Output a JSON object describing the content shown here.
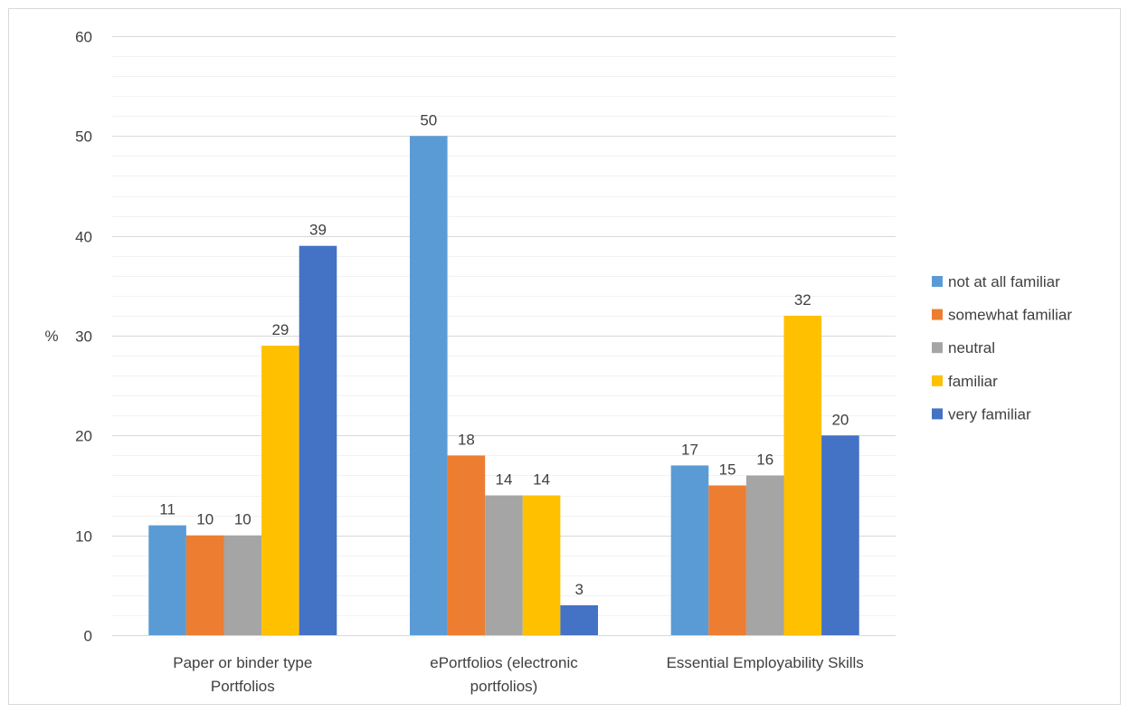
{
  "chart_data": {
    "type": "bar",
    "ylabel": "%",
    "ylim": [
      0,
      60
    ],
    "yticks": [
      0,
      10,
      20,
      30,
      40,
      50,
      60
    ],
    "major_gridlines": true,
    "minor_gridlines": true,
    "legend_position": "right",
    "categories": [
      [
        "Paper or binder type",
        "Portfolios"
      ],
      [
        "ePortfolios (electronic",
        "portfolios)"
      ],
      [
        "Essential Employability Skills"
      ]
    ],
    "series": [
      {
        "name": "not at all familiar",
        "color": "#5B9BD5",
        "values": [
          11,
          50,
          17
        ]
      },
      {
        "name": "somewhat familiar",
        "color": "#ED7D31",
        "values": [
          10,
          18,
          15
        ]
      },
      {
        "name": "neutral",
        "color": "#A5A5A5",
        "values": [
          10,
          14,
          16
        ]
      },
      {
        "name": "familiar",
        "color": "#FFC000",
        "values": [
          29,
          14,
          32
        ]
      },
      {
        "name": "very familiar",
        "color": "#4472C4",
        "values": [
          39,
          3,
          20
        ]
      }
    ]
  }
}
